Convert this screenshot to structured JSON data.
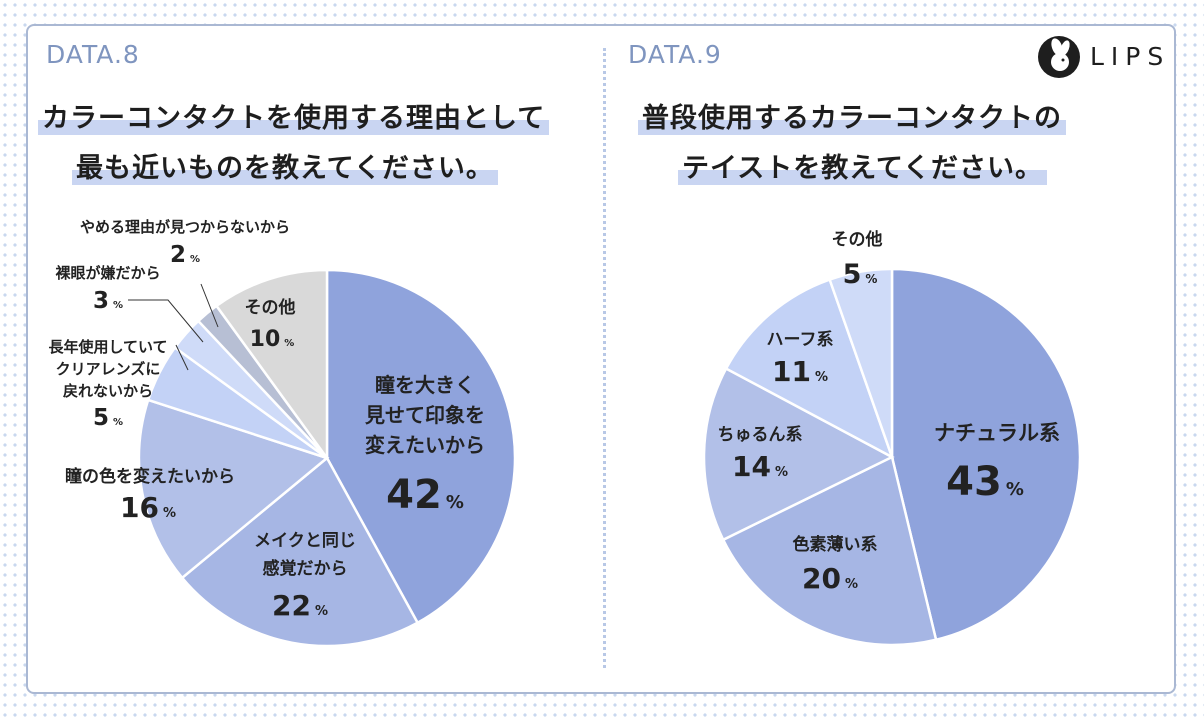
{
  "brand": {
    "logo_text": "LIPS",
    "logo_icon": "rabbit-icon"
  },
  "charts": [
    {
      "data_label": "DATA.8",
      "title_lines": [
        "カラーコンタクトを使用する理由として",
        "最も近いものを教えてください。"
      ]
    },
    {
      "data_label": "DATA.9",
      "title_lines": [
        "普段使用するカラーコンタクトの",
        "テイストを教えてください。"
      ]
    }
  ],
  "chart_data": [
    {
      "type": "pie",
      "title": "カラーコンタクトを使用する理由として最も近いものを教えてください。",
      "unit": "%",
      "slices": [
        {
          "label": "瞳を大きく見せて印象を変えたいから",
          "value": 42,
          "color": "#8fa3dc"
        },
        {
          "label": "メイクと同じ感覚だから",
          "value": 22,
          "color": "#a6b6e4"
        },
        {
          "label": "瞳の色を変えたいから",
          "value": 16,
          "color": "#b2c0e8"
        },
        {
          "label": "長年使用していてクリアレンズに戻れないから",
          "value": 5,
          "color": "#c3d2f6"
        },
        {
          "label": "裸眼が嫌だから",
          "value": 3,
          "color": "#cfdbf8"
        },
        {
          "label": "やめる理由が見つからないから",
          "value": 2,
          "color": "#b7bfd4"
        },
        {
          "label": "その他",
          "value": 10,
          "color": "#d9d9d9"
        }
      ]
    },
    {
      "type": "pie",
      "title": "普段使用するカラーコンタクトのテイストを教えてください。",
      "unit": "%",
      "slices": [
        {
          "label": "ナチュラル系",
          "value": 43,
          "color": "#8fa3dc"
        },
        {
          "label": "色素薄い系",
          "value": 20,
          "color": "#a6b6e4"
        },
        {
          "label": "ちゅるん系",
          "value": 14,
          "color": "#b2c0e8"
        },
        {
          "label": "ハーフ系",
          "value": 11,
          "color": "#c3d2f6"
        },
        {
          "label": "その他",
          "value": 5,
          "color": "#cfdbf8"
        }
      ]
    }
  ]
}
